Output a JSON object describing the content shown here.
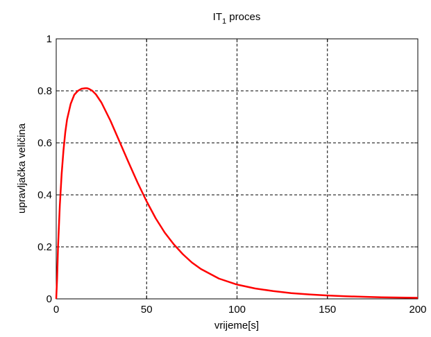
{
  "chart_data": {
    "type": "line",
    "title_main": "IT",
    "title_sub": "1",
    "title_rest": " proces",
    "xlabel": "vrijeme[s]",
    "ylabel": "upravljačka veličina",
    "xlim": [
      0,
      200
    ],
    "ylim": [
      0,
      1
    ],
    "xticks": [
      "0",
      "50",
      "100",
      "150",
      "200"
    ],
    "yticks": [
      "0",
      "0.2",
      "0.4",
      "0.6",
      "0.8",
      "1"
    ],
    "grid": true,
    "series": [
      {
        "color": "#ff0000",
        "x": [
          0,
          0.5,
          1,
          2,
          3,
          4,
          5,
          6,
          8,
          10,
          12,
          14,
          16,
          17,
          18,
          20,
          22,
          25,
          30,
          35,
          40,
          45,
          50,
          55,
          60,
          65,
          70,
          75,
          80,
          90,
          100,
          110,
          120,
          130,
          140,
          150,
          160,
          170,
          180,
          190,
          200
        ],
        "y": [
          0.0,
          0.08,
          0.2,
          0.36,
          0.48,
          0.57,
          0.64,
          0.69,
          0.75,
          0.785,
          0.8,
          0.808,
          0.81,
          0.81,
          0.808,
          0.8,
          0.786,
          0.755,
          0.685,
          0.605,
          0.525,
          0.447,
          0.375,
          0.31,
          0.255,
          0.21,
          0.172,
          0.14,
          0.115,
          0.078,
          0.055,
          0.04,
          0.03,
          0.022,
          0.017,
          0.013,
          0.01,
          0.008,
          0.006,
          0.005,
          0.004
        ]
      }
    ]
  }
}
